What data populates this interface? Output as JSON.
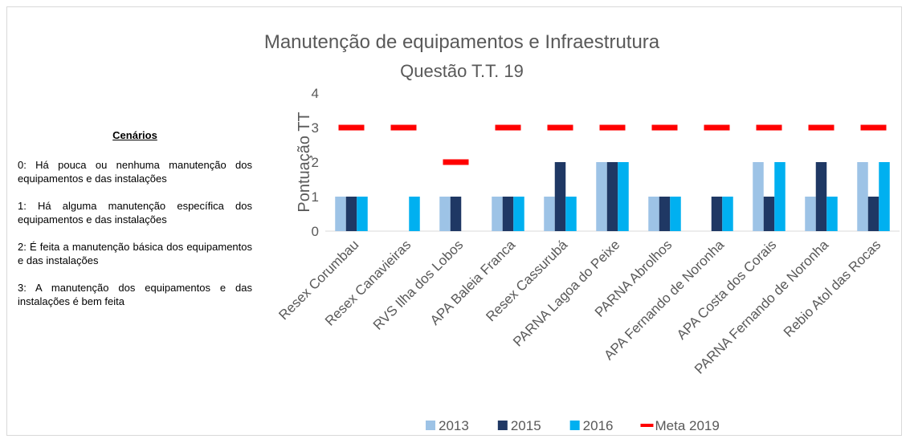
{
  "sidebar": {
    "heading": "Cenários",
    "items": [
      "0: Há pouca ou nenhuma manutenção dos equipamentos e das instalações",
      "1: Há alguma manutenção específica dos equipamentos e das instalações",
      "2: É feita a manutenção básica dos equipamentos e das instalações",
      "3: A manutenção dos equipamentos e das instalações é bem feita"
    ]
  },
  "chart_data": {
    "type": "bar",
    "title": "Manutenção de equipamentos e Infraestrutura",
    "subtitle": "Questão T.T. 19",
    "y_label": "Pontuação TT",
    "categories": [
      "Resex Corumbau",
      "Resex Canavieiras",
      "RVS Ilha dos Lobos",
      "APA Baleia Franca",
      "Resex Cassurubá",
      "PARNA Lagoa do Peixe",
      "PARNA Abrolhos",
      "APA Fernando de Noronha",
      "APA Costa dos Corais",
      "PARNA Fernando de Noronha",
      "Rebio Atol das Rocas"
    ],
    "series": [
      {
        "name": "2013",
        "color": "#9dc3e6",
        "type": "bar",
        "values": [
          1,
          0,
          1,
          1,
          1,
          2,
          1,
          0,
          2,
          1,
          2
        ]
      },
      {
        "name": "2015",
        "color": "#1f3864",
        "type": "bar",
        "values": [
          1,
          0,
          1,
          1,
          2,
          2,
          1,
          1,
          1,
          2,
          1
        ]
      },
      {
        "name": "2016",
        "color": "#00b0f0",
        "type": "bar",
        "values": [
          1,
          1,
          0,
          1,
          1,
          2,
          1,
          1,
          2,
          1,
          2
        ]
      },
      {
        "name": "Meta 2019",
        "color": "#ff0000",
        "type": "dash",
        "values": [
          3,
          3,
          2,
          3,
          3,
          3,
          3,
          3,
          3,
          3,
          3
        ]
      }
    ],
    "ylim": [
      0,
      4
    ],
    "yticks": [
      0,
      1,
      2,
      3,
      4
    ],
    "grid": false,
    "legend": "bottom"
  }
}
